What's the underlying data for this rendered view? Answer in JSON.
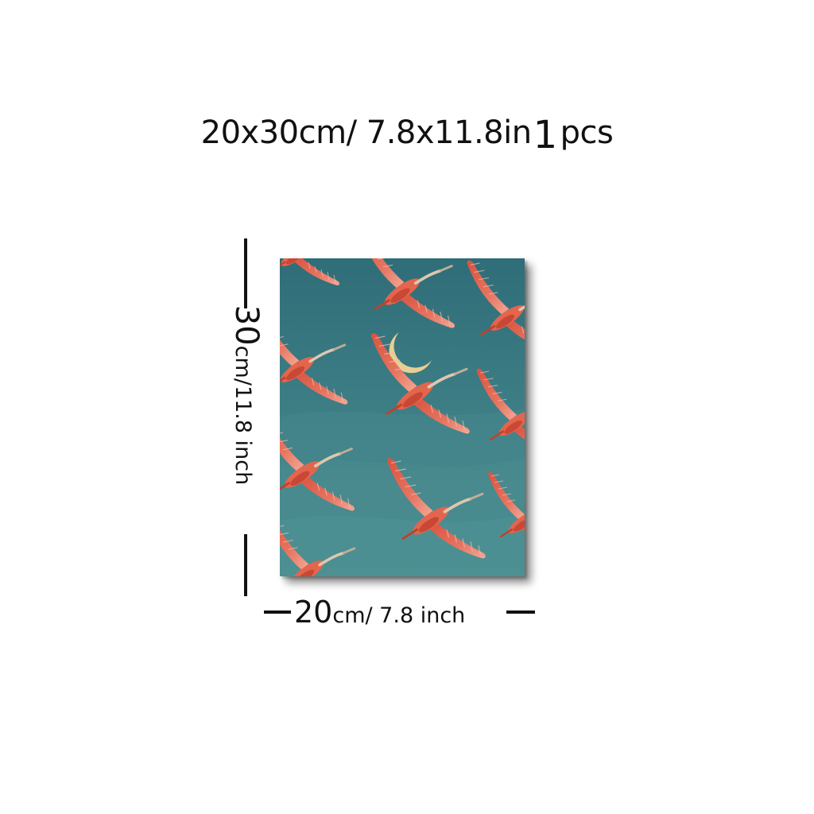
{
  "header": {
    "size": "20x30cm/ 7.8x11.8in",
    "quantity": "1",
    "quantity_unit": "pcs"
  },
  "dimensions": {
    "height_value": "30",
    "height_unit": "cm/11.8 inch",
    "width_value": "20",
    "width_unit": "cm/ 7.8 inch"
  },
  "artwork": {
    "background_color": "#3e7f86",
    "moon_color": "#e7cf93",
    "bird_color": "#e4654d",
    "bird_highlight_color": "#f3a493",
    "neck_color": "#dcc8b0"
  }
}
